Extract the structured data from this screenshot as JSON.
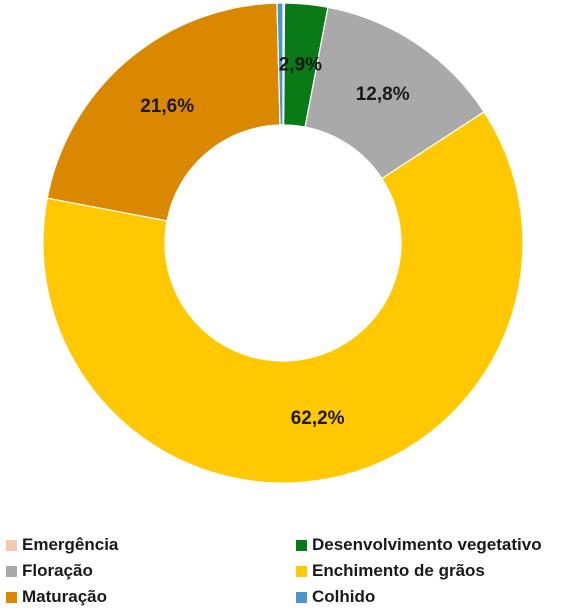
{
  "chart_data": {
    "type": "pie",
    "variant": "donut",
    "title": "",
    "categories": [
      "Emergência",
      "Desenvolvimento vegetativo",
      "Floração",
      "Enchimento de grãos",
      "Maturação",
      "Colhido"
    ],
    "values": [
      0.1,
      2.9,
      12.8,
      62.2,
      21.6,
      0.4
    ],
    "data_labels": [
      "",
      "2,9%",
      "12,8%",
      "62,2%",
      "21,6%",
      ""
    ],
    "unit": "%",
    "colors": [
      "#f4c7b0",
      "#0a7a17",
      "#a9a9a9",
      "#ffc800",
      "#d98800",
      "#4a97c9"
    ],
    "start_angle_deg": 0,
    "direction": "clockwise",
    "legend": {
      "position": "bottom",
      "columns": 2,
      "order": [
        0,
        1,
        2,
        3,
        4,
        5
      ]
    },
    "grid": false
  }
}
